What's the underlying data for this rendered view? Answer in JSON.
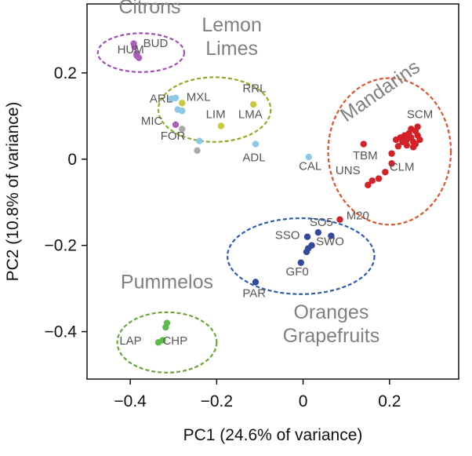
{
  "chart_data": {
    "type": "scatter",
    "xlabel": "PC1 (24.6% of variance)",
    "ylabel": "PC2 (10.8% of variance)",
    "xlim": [
      -0.5,
      0.36
    ],
    "ylim": [
      -0.51,
      0.36
    ],
    "xticks": [
      -0.4,
      -0.2,
      0,
      0.2
    ],
    "xtick_labels": [
      "−0.4",
      "−0.2",
      "0",
      "0.2"
    ],
    "yticks": [
      0.2,
      0,
      -0.2,
      -0.4
    ],
    "ytick_labels": [
      "0.2",
      "0",
      "−0.2",
      "−0.4"
    ],
    "grid": false,
    "colors": {
      "citrons": "#a85fb5",
      "lemons": "#c8c83a",
      "light_blue": "#8cc8e8",
      "grey": "#aaaaaa",
      "mandarins": "#d42127",
      "oranges": "#34489c",
      "pummelos": "#5fb94c",
      "ellipse_citrons": "#a04fb6",
      "ellipse_lemons": "#8fac25",
      "ellipse_mandarins": "#e2532b",
      "ellipse_oranges": "#2b5cb8",
      "ellipse_pummelos": "#6ca535"
    },
    "groups": [
      {
        "label_lines": [
          "Citrons"
        ],
        "label_at": [
          -0.355,
          0.338
        ],
        "anchor": "middle",
        "color": "ellipse_citrons",
        "ellipse": {
          "cx": -0.375,
          "cy": 0.247,
          "rx": 0.1,
          "ry": 0.045
        }
      },
      {
        "label_lines": [
          "Lemon",
          "Limes"
        ],
        "label_at": [
          -0.165,
          0.296
        ],
        "anchor": "middle",
        "color": "ellipse_lemons",
        "ellipse": {
          "cx": -0.205,
          "cy": 0.115,
          "rx": 0.13,
          "ry": 0.075
        }
      },
      {
        "label_lines": [
          "Mandarins"
        ],
        "label_at": [
          0.1,
          0.085
        ],
        "anchor": "start",
        "rotate": -35,
        "color": "ellipse_mandarins",
        "ellipse": {
          "cx": 0.2,
          "cy": 0.018,
          "rx": 0.142,
          "ry": 0.17
        }
      },
      {
        "label_lines": [
          "Oranges",
          "Grapefruits"
        ],
        "label_at": [
          0.065,
          -0.37
        ],
        "anchor": "middle",
        "color": "ellipse_oranges",
        "ellipse": {
          "cx": -0.005,
          "cy": -0.225,
          "rx": 0.17,
          "ry": 0.088
        }
      },
      {
        "label_lines": [
          "Pummelos"
        ],
        "label_at": [
          -0.315,
          -0.3
        ],
        "anchor": "middle",
        "color": "ellipse_pummelos",
        "ellipse": {
          "cx": -0.315,
          "cy": -0.425,
          "rx": 0.115,
          "ry": 0.07
        }
      }
    ],
    "points": [
      {
        "x": -0.39,
        "y": 0.26,
        "c": "citrons"
      },
      {
        "x": -0.385,
        "y": 0.245,
        "c": "citrons"
      },
      {
        "x": -0.38,
        "y": 0.235,
        "c": "citrons"
      },
      {
        "x": -0.392,
        "y": 0.268,
        "c": "citrons"
      },
      {
        "x": -0.385,
        "y": 0.24,
        "c": "citrons"
      },
      {
        "x": -0.305,
        "y": 0.14,
        "c": "light_blue"
      },
      {
        "x": -0.295,
        "y": 0.142,
        "c": "light_blue"
      },
      {
        "x": -0.29,
        "y": 0.115,
        "c": "light_blue"
      },
      {
        "x": -0.28,
        "y": 0.112,
        "c": "light_blue"
      },
      {
        "x": -0.28,
        "y": 0.13,
        "c": "lemons"
      },
      {
        "x": -0.115,
        "y": 0.127,
        "c": "lemons"
      },
      {
        "x": -0.19,
        "y": 0.077,
        "c": "lemons"
      },
      {
        "x": -0.295,
        "y": 0.08,
        "c": "citrons"
      },
      {
        "x": -0.28,
        "y": 0.07,
        "c": "grey"
      },
      {
        "x": -0.24,
        "y": 0.042,
        "c": "light_blue"
      },
      {
        "x": -0.245,
        "y": 0.02,
        "c": "grey"
      },
      {
        "x": -0.11,
        "y": 0.035,
        "c": "light_blue"
      },
      {
        "x": 0.013,
        "y": 0.005,
        "c": "light_blue"
      },
      {
        "x": 0.225,
        "y": 0.05,
        "c": "mandarins"
      },
      {
        "x": 0.235,
        "y": 0.055,
        "c": "mandarins"
      },
      {
        "x": 0.24,
        "y": 0.045,
        "c": "mandarins"
      },
      {
        "x": 0.245,
        "y": 0.06,
        "c": "mandarins"
      },
      {
        "x": 0.25,
        "y": 0.05,
        "c": "mandarins"
      },
      {
        "x": 0.255,
        "y": 0.04,
        "c": "mandarins"
      },
      {
        "x": 0.26,
        "y": 0.065,
        "c": "mandarins"
      },
      {
        "x": 0.265,
        "y": 0.075,
        "c": "mandarins"
      },
      {
        "x": 0.255,
        "y": 0.028,
        "c": "mandarins"
      },
      {
        "x": 0.26,
        "y": 0.035,
        "c": "mandarins"
      },
      {
        "x": 0.27,
        "y": 0.045,
        "c": "mandarins"
      },
      {
        "x": 0.265,
        "y": 0.055,
        "c": "mandarins"
      },
      {
        "x": 0.24,
        "y": 0.032,
        "c": "mandarins"
      },
      {
        "x": 0.23,
        "y": 0.04,
        "c": "mandarins"
      },
      {
        "x": 0.215,
        "y": 0.045,
        "c": "mandarins"
      },
      {
        "x": 0.22,
        "y": 0.03,
        "c": "mandarins"
      },
      {
        "x": 0.25,
        "y": 0.07,
        "c": "mandarins"
      },
      {
        "x": 0.205,
        "y": 0.013,
        "c": "mandarins"
      },
      {
        "x": 0.14,
        "y": 0.035,
        "c": "mandarins"
      },
      {
        "x": 0.205,
        "y": -0.01,
        "c": "mandarins"
      },
      {
        "x": 0.19,
        "y": -0.03,
        "c": "mandarins"
      },
      {
        "x": 0.175,
        "y": -0.045,
        "c": "mandarins"
      },
      {
        "x": 0.16,
        "y": -0.05,
        "c": "mandarins"
      },
      {
        "x": 0.15,
        "y": -0.06,
        "c": "mandarins"
      },
      {
        "x": 0.085,
        "y": -0.14,
        "c": "mandarins"
      },
      {
        "x": 0.035,
        "y": -0.17,
        "c": "oranges"
      },
      {
        "x": 0.01,
        "y": -0.18,
        "c": "oranges"
      },
      {
        "x": 0.065,
        "y": -0.178,
        "c": "oranges"
      },
      {
        "x": 0.02,
        "y": -0.2,
        "c": "oranges"
      },
      {
        "x": 0.012,
        "y": -0.207,
        "c": "oranges"
      },
      {
        "x": 0.008,
        "y": -0.215,
        "c": "oranges"
      },
      {
        "x": -0.005,
        "y": -0.24,
        "c": "oranges"
      },
      {
        "x": -0.11,
        "y": -0.285,
        "c": "oranges"
      },
      {
        "x": -0.315,
        "y": -0.38,
        "c": "pummelos"
      },
      {
        "x": -0.318,
        "y": -0.39,
        "c": "pummelos"
      },
      {
        "x": -0.325,
        "y": -0.42,
        "c": "pummelos"
      },
      {
        "x": -0.335,
        "y": -0.425,
        "c": "pummelos"
      }
    ],
    "labels": [
      {
        "text": "HUM",
        "x": -0.43,
        "y": 0.245
      },
      {
        "text": "BUD",
        "x": -0.37,
        "y": 0.26
      },
      {
        "text": "ARL",
        "x": -0.355,
        "y": 0.132
      },
      {
        "text": "MXL",
        "x": -0.27,
        "y": 0.135
      },
      {
        "text": "RRL",
        "x": -0.14,
        "y": 0.155
      },
      {
        "text": "LIM",
        "x": -0.225,
        "y": 0.095
      },
      {
        "text": "LMA",
        "x": -0.15,
        "y": 0.095
      },
      {
        "text": "MIC",
        "x": -0.375,
        "y": 0.08
      },
      {
        "text": "FOR",
        "x": -0.33,
        "y": 0.045
      },
      {
        "text": "ADL",
        "x": -0.14,
        "y": -0.005
      },
      {
        "text": "CAL",
        "x": -0.01,
        "y": -0.025
      },
      {
        "text": "SCM",
        "x": 0.24,
        "y": 0.095
      },
      {
        "text": "TBM",
        "x": 0.115,
        "y": 0.0
      },
      {
        "text": "UNS",
        "x": 0.075,
        "y": -0.035
      },
      {
        "text": "CLM",
        "x": 0.2,
        "y": -0.027
      },
      {
        "text": "M20",
        "x": 0.1,
        "y": -0.14
      },
      {
        "text": "SO5",
        "x": 0.015,
        "y": -0.155
      },
      {
        "text": "SSO",
        "x": -0.065,
        "y": -0.185
      },
      {
        "text": "SWO",
        "x": 0.03,
        "y": -0.2
      },
      {
        "text": "GF0",
        "x": -0.04,
        "y": -0.27
      },
      {
        "text": "PAR",
        "x": -0.14,
        "y": -0.32
      },
      {
        "text": "LAP",
        "x": -0.425,
        "y": -0.43
      },
      {
        "text": "CHP",
        "x": -0.325,
        "y": -0.43
      }
    ]
  }
}
